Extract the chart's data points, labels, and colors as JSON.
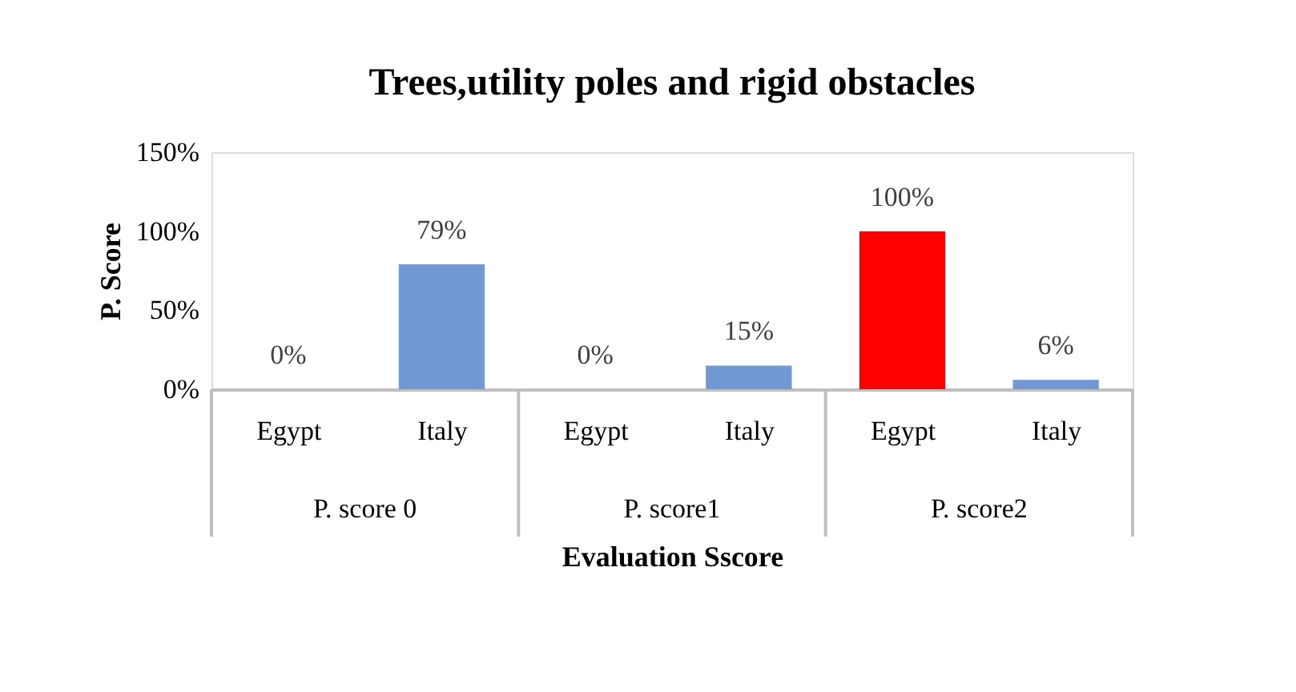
{
  "chart_data": {
    "type": "bar",
    "title": "Trees,utility poles and rigid obstacles",
    "xlabel": "Evaluation Sscore",
    "ylabel": "P. Score",
    "categories": [
      "Egypt",
      "Italy",
      "Egypt",
      "Italy",
      "Egypt",
      "Italy"
    ],
    "values": [
      0,
      79,
      0,
      15,
      100,
      6
    ],
    "value_labels": [
      "0%",
      "79%",
      "0%",
      "15%",
      "100%",
      "6%"
    ],
    "colors": [
      "#7399d4",
      "#7399d4",
      "#7399d4",
      "#7399d4",
      "#ff0000",
      "#7399d4"
    ],
    "ylim": [
      0,
      150
    ],
    "yticks": [
      {
        "value": 0,
        "label": "0%"
      },
      {
        "value": 50,
        "label": "50%"
      },
      {
        "value": 100,
        "label": "100%"
      },
      {
        "value": 150,
        "label": "150%"
      }
    ],
    "annotations": [
      "P. score 0",
      "P. score1",
      "P. score2"
    ],
    "grid": false
  }
}
